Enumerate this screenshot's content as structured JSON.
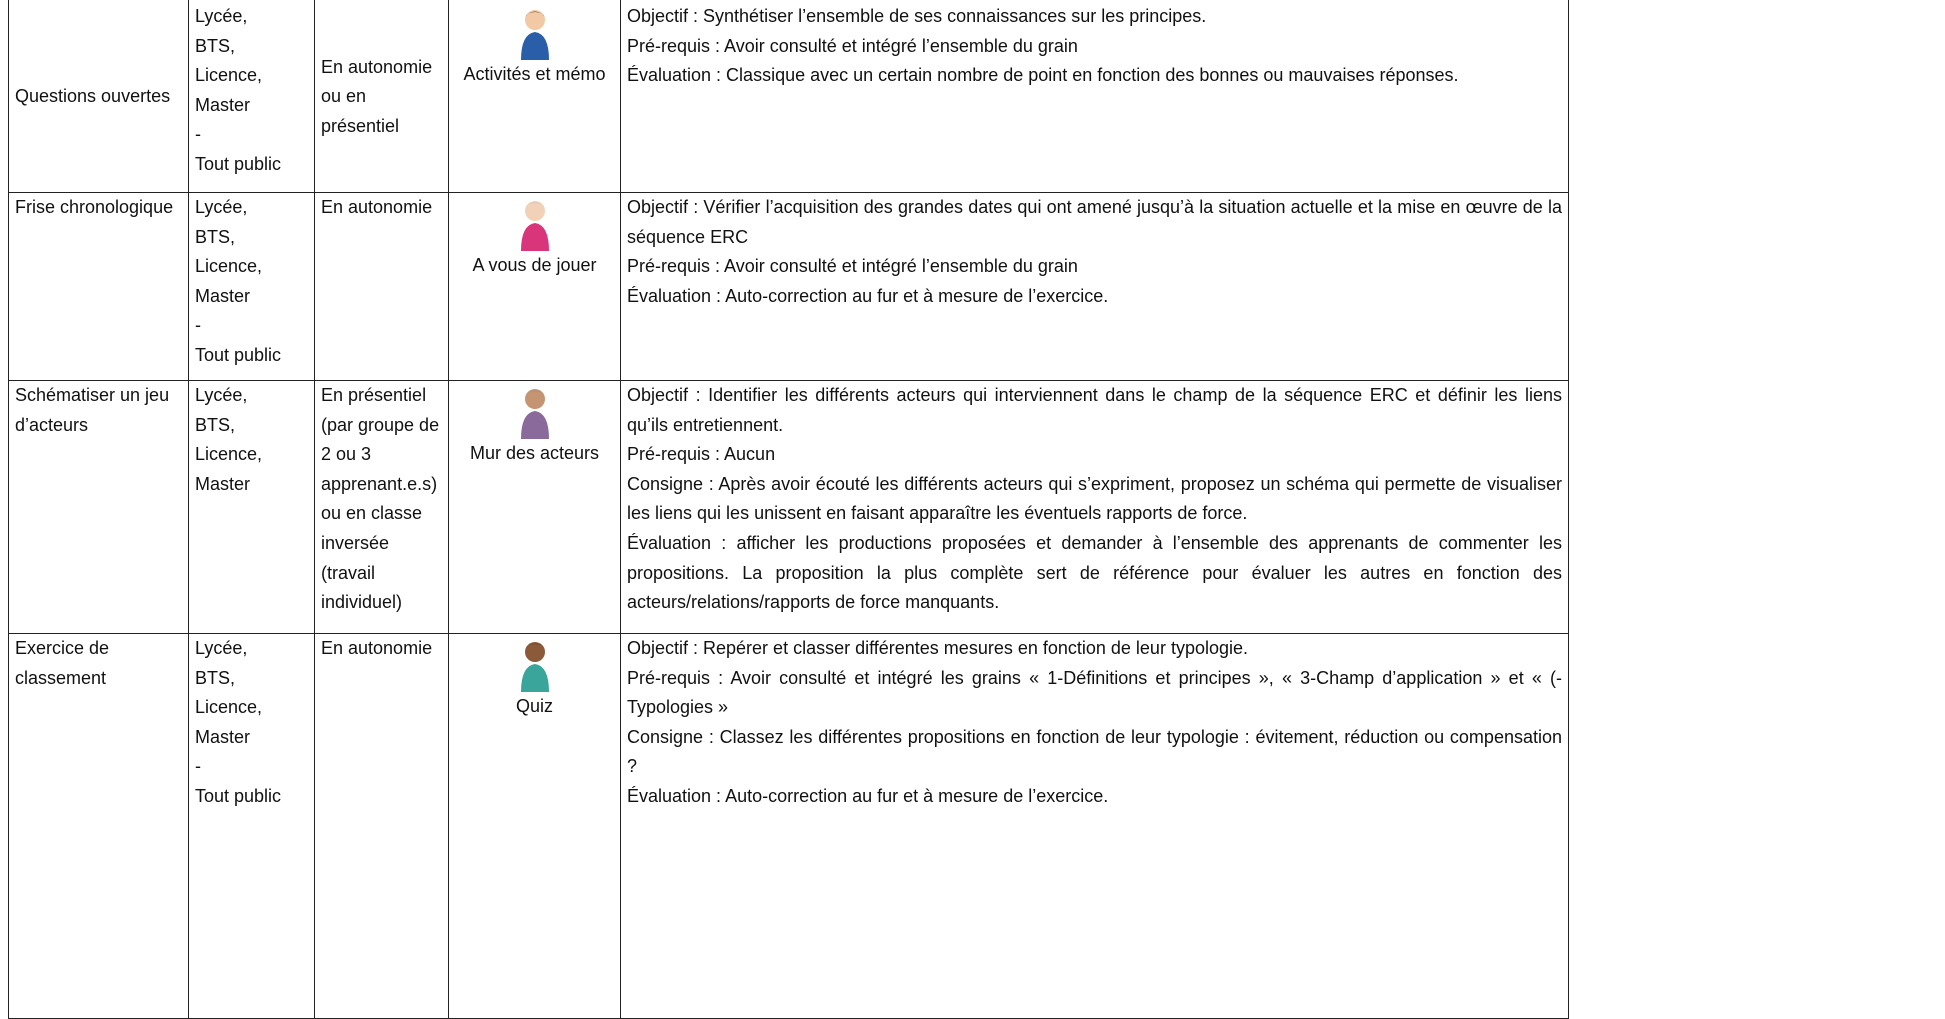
{
  "table": {
    "rows": [
      [
        [
          "Questions ouvertes"
        ],
        [
          "Lycée,",
          "BTS,",
          "Licence,",
          "Master",
          "-",
          "Tout public"
        ],
        [
          "En autonomie ou en présentiel"
        ],
        [
          "Activités et mémo"
        ],
        [
          "Objectif : Synthétiser l’ensemble de ses connaissances sur les principes.",
          "Pré-requis : Avoir consulté et intégré l’ensemble du grain",
          "Évaluation : Classique avec un certain nombre de point en fonction des bonnes ou mauvaises réponses."
        ]
      ],
      [
        [
          "Frise chronologique"
        ],
        [
          "Lycée,",
          "BTS,",
          "Licence,",
          "Master",
          "-",
          "Tout public"
        ],
        [
          "En autonomie"
        ],
        [
          "A vous de jouer"
        ],
        [
          "Objectif : Vérifier l’acquisition des grandes dates qui ont amené jusqu’à la situation actuelle et la mise en œuvre de la séquence ERC",
          "Pré-requis : Avoir consulté et intégré l’ensemble du grain",
          "Évaluation : Auto-correction au fur et à mesure de l’exercice."
        ]
      ],
      [
        [
          "Schématiser un jeu d’acteurs"
        ],
        [
          "Lycée,",
          "BTS,",
          "Licence,",
          "Master"
        ],
        [
          "En présentiel (par groupe de 2 ou 3 apprenant.e.s) ou en classe inversée (travail individuel)"
        ],
        [
          "Mur des acteurs"
        ],
        [
          "Objectif : Identifier les différents acteurs qui interviennent dans le champ de la séquence ERC et définir les liens qu’ils entretiennent.",
          "Pré-requis : Aucun",
          "Consigne : Après avoir écouté les différents acteurs qui s’expriment, proposez un schéma qui permette de visualiser les liens qui les unissent en faisant apparaître les éventuels rapports de force.",
          "Évaluation : afficher les productions proposées et demander à l’ensemble des apprenants de commenter les propositions. La proposition la plus complète sert de référence pour évaluer les autres en fonction des acteurs/relations/rapports de force manquants."
        ]
      ],
      [
        [
          "Exercice de classement"
        ],
        [
          "Lycée,",
          "BTS,",
          "Licence,",
          "Master",
          "-",
          "Tout public"
        ],
        [
          "En autonomie"
        ],
        [
          "Quiz"
        ],
        [
          "Objectif : Repérer et classer différentes mesures en fonction de leur typologie.",
          "Pré-requis : Avoir consulté et intégré les grains « 1-Définitions et principes », « 3-Champ d’application » et « (-Typologies »",
          "Consigne : Classez les différentes propositions en fonction de leur typologie : évitement, réduction ou compensation ?",
          "Évaluation : Auto-correction au fur et à mesure de l’exercice."
        ]
      ]
    ]
  }
}
